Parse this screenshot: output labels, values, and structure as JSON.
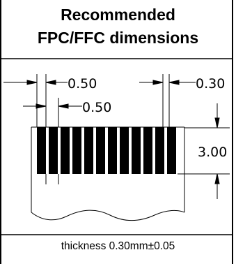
{
  "title": {
    "line1": "Recommended",
    "line2": "FPC/FFC dimensions"
  },
  "dimensions": {
    "pitch_top": "0.50",
    "pitch_second": "0.50",
    "width_right": "0.30",
    "height": "3.00"
  },
  "caption": "thickness 0.30mm±0.05",
  "colors": {
    "ink": "#000000",
    "background": "#ffffff"
  },
  "features": {
    "conductor_count": 12
  }
}
